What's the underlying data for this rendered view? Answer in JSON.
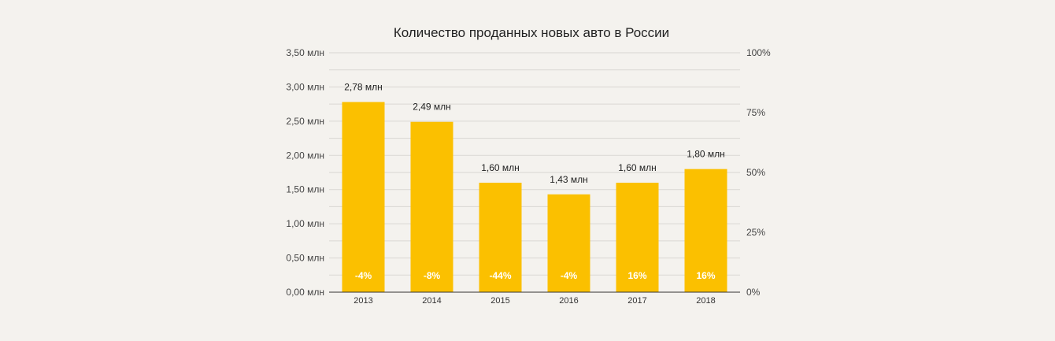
{
  "chart_data": {
    "type": "bar",
    "title": "Количество проданных новых авто в России",
    "categories": [
      "2013",
      "2014",
      "2015",
      "2016",
      "2017",
      "2018"
    ],
    "series": [
      {
        "values": [
          2.78,
          2.49,
          1.6,
          1.43,
          1.6,
          1.8
        ],
        "data_labels": [
          "2,78 млн",
          "2,49 млн",
          "1,60 млн",
          "1,43 млн",
          "1,60 млн",
          "1,80 млн"
        ],
        "inner_labels": [
          "-4%",
          "-8%",
          "-44%",
          "-4%",
          "16%",
          "16%"
        ]
      }
    ],
    "ylim": [
      0,
      3.5
    ],
    "y_ticks": [
      0,
      0.5,
      1.0,
      1.5,
      2.0,
      2.5,
      3.0,
      3.5
    ],
    "y_tick_labels": [
      "0,00 млн",
      "0,50 млн",
      "1,00 млн",
      "1,50 млн",
      "2,00 млн",
      "2,50 млн",
      "3,00 млн",
      "3,50 млн"
    ],
    "y2lim": [
      0,
      100
    ],
    "y2_ticks": [
      0,
      25,
      50,
      75,
      100
    ],
    "y2_tick_labels": [
      "0%",
      "25%",
      "50%",
      "75%",
      "100%"
    ],
    "grid": true,
    "colors": {
      "bar": "#fbc000",
      "inner_label": "#ffffff",
      "grid": "#d9d7d3",
      "axis": "#333333",
      "background": "#f4f2ee"
    }
  }
}
